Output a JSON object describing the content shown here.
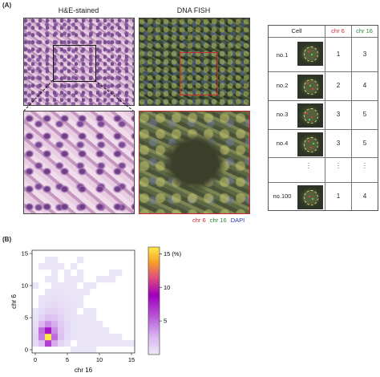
{
  "panel_a": {
    "label": "(A)",
    "he_title": "H&E-stained",
    "fish_title": "DNA FISH",
    "fish_legend": {
      "chr6": "chr 6",
      "chr16": "chr 16",
      "dapi": "DAPI"
    },
    "colors": {
      "chr6": "#d2262c",
      "chr16": "#2a8a3a",
      "dapi": "#2b3bb0"
    },
    "table": {
      "headers": {
        "cell": "Cell",
        "chr6": "chr 6",
        "chr16": "chr 16"
      },
      "rows": [
        {
          "cell": "no.1",
          "chr6": "1",
          "chr16": "3"
        },
        {
          "cell": "no.2",
          "chr6": "2",
          "chr16": "4"
        },
        {
          "cell": "no.3",
          "chr6": "3",
          "chr16": "5"
        },
        {
          "cell": "no.4",
          "chr6": "3",
          "chr16": "5"
        },
        {
          "cell": "no.100",
          "chr6": "1",
          "chr16": "4"
        }
      ]
    }
  },
  "panel_b": {
    "label": "(B)"
  },
  "chart_data": {
    "type": "heatmap",
    "xlabel": "chr 16",
    "ylabel": "chr 6",
    "xlim": [
      0,
      16
    ],
    "ylim": [
      0,
      16
    ],
    "xticks": [
      "0",
      "5",
      "10",
      "15"
    ],
    "yticks": [
      "0",
      "5",
      "10",
      "15"
    ],
    "colorbar": {
      "ticks": [
        "5",
        "10",
        "15 (%)"
      ],
      "tick_values": [
        5,
        10,
        15
      ],
      "range": [
        0,
        16
      ],
      "colors": [
        "#ebe9f8",
        "#d7b0ee",
        "#b858d8",
        "#a000c0",
        "#e0507a",
        "#f6a12a",
        "#ffe94a"
      ]
    },
    "cells": [
      [
        0,
        1,
        0.8
      ],
      [
        1,
        1,
        2.0
      ],
      [
        2,
        1,
        6.5
      ],
      [
        3,
        1,
        3.0
      ],
      [
        4,
        1,
        1.0
      ],
      [
        5,
        1,
        0.4
      ],
      [
        0,
        2,
        1.0
      ],
      [
        1,
        2,
        4.5
      ],
      [
        2,
        2,
        16.0
      ],
      [
        3,
        2,
        5.0
      ],
      [
        4,
        2,
        2.0
      ],
      [
        5,
        2,
        0.7
      ],
      [
        6,
        2,
        0.3
      ],
      [
        0,
        3,
        0.8
      ],
      [
        1,
        3,
        5.0
      ],
      [
        2,
        3,
        8.0
      ],
      [
        3,
        3,
        4.0
      ],
      [
        4,
        3,
        1.8
      ],
      [
        5,
        3,
        0.8
      ],
      [
        6,
        3,
        0.3
      ],
      [
        0,
        4,
        0.6
      ],
      [
        1,
        4,
        2.5
      ],
      [
        2,
        4,
        4.0
      ],
      [
        3,
        4,
        3.0
      ],
      [
        4,
        4,
        1.5
      ],
      [
        5,
        4,
        0.8
      ],
      [
        6,
        4,
        0.3
      ],
      [
        0,
        5,
        0.3
      ],
      [
        1,
        5,
        1.2
      ],
      [
        2,
        5,
        2.0
      ],
      [
        3,
        5,
        1.8
      ],
      [
        4,
        5,
        1.2
      ],
      [
        5,
        5,
        0.6
      ],
      [
        6,
        5,
        0.3
      ],
      [
        7,
        5,
        0.2
      ],
      [
        0,
        6,
        0.2
      ],
      [
        1,
        6,
        0.7
      ],
      [
        2,
        6,
        1.2
      ],
      [
        3,
        6,
        1.2
      ],
      [
        4,
        6,
        0.8
      ],
      [
        5,
        6,
        0.5
      ],
      [
        6,
        6,
        0.3
      ],
      [
        1,
        7,
        0.4
      ],
      [
        2,
        7,
        0.7
      ],
      [
        3,
        7,
        0.8
      ],
      [
        4,
        7,
        0.6
      ],
      [
        5,
        7,
        0.4
      ],
      [
        6,
        7,
        0.3
      ],
      [
        7,
        7,
        0.2
      ],
      [
        1,
        8,
        0.3
      ],
      [
        2,
        8,
        0.4
      ],
      [
        3,
        8,
        0.5
      ],
      [
        4,
        8,
        0.4
      ],
      [
        5,
        8,
        0.3
      ],
      [
        6,
        8,
        0.2
      ],
      [
        7,
        8,
        0.2
      ],
      [
        2,
        9,
        0.3
      ],
      [
        3,
        9,
        0.3
      ],
      [
        4,
        9,
        0.3
      ],
      [
        5,
        9,
        0.2
      ],
      [
        6,
        9,
        0.2
      ],
      [
        7,
        9,
        0.2
      ],
      [
        8,
        9,
        0.2
      ],
      [
        0,
        10,
        0.2
      ],
      [
        3,
        10,
        0.2
      ],
      [
        4,
        10,
        0.2
      ],
      [
        5,
        10,
        0.2
      ],
      [
        6,
        10,
        0.2
      ],
      [
        8,
        10,
        0.2
      ],
      [
        9,
        10,
        0.2
      ],
      [
        2,
        11,
        0.2
      ],
      [
        3,
        11,
        0.2
      ],
      [
        5,
        11,
        0.2
      ],
      [
        6,
        11,
        0.2
      ],
      [
        7,
        11,
        0.2
      ],
      [
        10,
        11,
        0.2
      ],
      [
        11,
        11,
        0.2
      ],
      [
        12,
        11,
        0.2
      ],
      [
        3,
        12,
        0.2
      ],
      [
        5,
        12,
        0.2
      ],
      [
        7,
        12,
        0.2
      ],
      [
        12,
        12,
        0.2
      ],
      [
        13,
        12,
        0.2
      ],
      [
        1,
        13,
        0.2
      ],
      [
        2,
        13,
        0.2
      ],
      [
        3,
        13,
        0.2
      ],
      [
        4,
        13,
        0.2
      ],
      [
        6,
        13,
        0.2
      ],
      [
        2,
        14,
        0.2
      ],
      [
        3,
        14,
        0.2
      ],
      [
        7,
        14,
        0.2
      ],
      [
        8,
        0,
        0.2
      ],
      [
        9,
        0,
        0.2
      ],
      [
        7,
        0,
        0.2
      ],
      [
        6,
        0,
        0.2
      ],
      [
        7,
        1,
        0.2
      ],
      [
        8,
        1,
        0.2
      ],
      [
        9,
        1,
        0.2
      ],
      [
        10,
        1,
        0.2
      ],
      [
        11,
        1,
        0.2
      ],
      [
        12,
        1,
        0.2
      ],
      [
        13,
        1,
        0.2
      ],
      [
        14,
        1,
        0.2
      ],
      [
        15,
        1,
        0.2
      ],
      [
        7,
        2,
        0.2
      ],
      [
        8,
        2,
        0.2
      ],
      [
        9,
        2,
        0.2
      ],
      [
        10,
        2,
        0.2
      ],
      [
        11,
        2,
        0.2
      ],
      [
        12,
        2,
        0.2
      ],
      [
        13,
        2,
        0.2
      ],
      [
        7,
        3,
        0.2
      ],
      [
        8,
        3,
        0.2
      ],
      [
        9,
        3,
        0.2
      ],
      [
        10,
        3,
        0.2
      ],
      [
        11,
        3,
        0.2
      ],
      [
        7,
        4,
        0.2
      ],
      [
        8,
        4,
        0.2
      ],
      [
        9,
        4,
        0.2
      ],
      [
        10,
        4,
        0.2
      ],
      [
        8,
        5,
        0.2
      ],
      [
        9,
        5,
        0.2
      ],
      [
        8,
        6,
        0.2
      ],
      [
        9,
        6,
        0.2
      ]
    ]
  }
}
